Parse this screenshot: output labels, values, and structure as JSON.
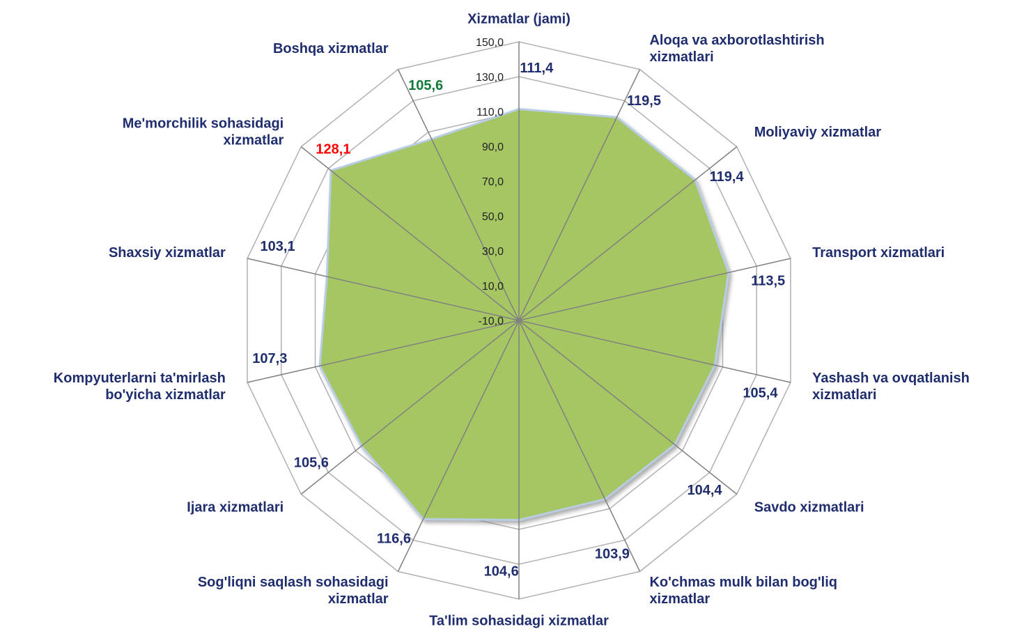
{
  "chart_data": {
    "type": "radar",
    "categories": [
      "Xizmatlar (jami)",
      "Aloqa va axborotlashtirish\nxizmatlari",
      "Moliyaviy xizmatlar",
      "Transport xizmatlari",
      "Yashash  va ovqatlanish\nxizmatlari",
      "Savdo xizmatlari",
      "Ko'chmas mulk bilan bog'liq\nxizmatlar",
      "Ta'lim sohasidagi xizmatlar",
      "Sog'liqni saqlash  sohasidagi\nxizmatlar",
      "Ijara xizmatlari",
      "Kompyuterlarni ta'mirlash\nbo'yicha xizmatlar",
      "Shaxsiy xizmatlar",
      "Me'morchilik sohasidagi\nxizmatlar",
      "Boshqa  xizmatlar"
    ],
    "values": [
      111.4,
      119.5,
      119.4,
      113.5,
      105.4,
      104.4,
      103.9,
      104.6,
      116.6,
      105.6,
      107.3,
      103.1,
      128.1,
      105.6
    ],
    "value_labels": [
      "111,4",
      "119,5",
      "119,4",
      "113,5",
      "105,4",
      "104,4",
      "103,9",
      "104,6",
      "116,6",
      "105,6",
      "107,3",
      "103,1",
      "128,1",
      "105,6"
    ],
    "value_label_colors": [
      "#1f2d6e",
      "#1f2d6e",
      "#1f2d6e",
      "#1f2d6e",
      "#1f2d6e",
      "#1f2d6e",
      "#1f2d6e",
      "#1f2d6e",
      "#1f2d6e",
      "#1f2d6e",
      "#1f2d6e",
      "#1f2d6e",
      "#ff0000",
      "#117a3a"
    ],
    "color": "#a5c663",
    "ylim": [
      -10,
      150
    ],
    "yticks": [
      {
        "value": -10,
        "label": "-10,0"
      },
      {
        "value": 10,
        "label": "10,0"
      },
      {
        "value": 30,
        "label": "30,0"
      },
      {
        "value": 50,
        "label": "50,0"
      },
      {
        "value": 70,
        "label": "70,0"
      },
      {
        "value": 90,
        "label": "90,0"
      },
      {
        "value": 110,
        "label": "110,0"
      },
      {
        "value": 130,
        "label": "130,0"
      },
      {
        "value": 150,
        "label": "150,0"
      }
    ],
    "grid": true
  }
}
